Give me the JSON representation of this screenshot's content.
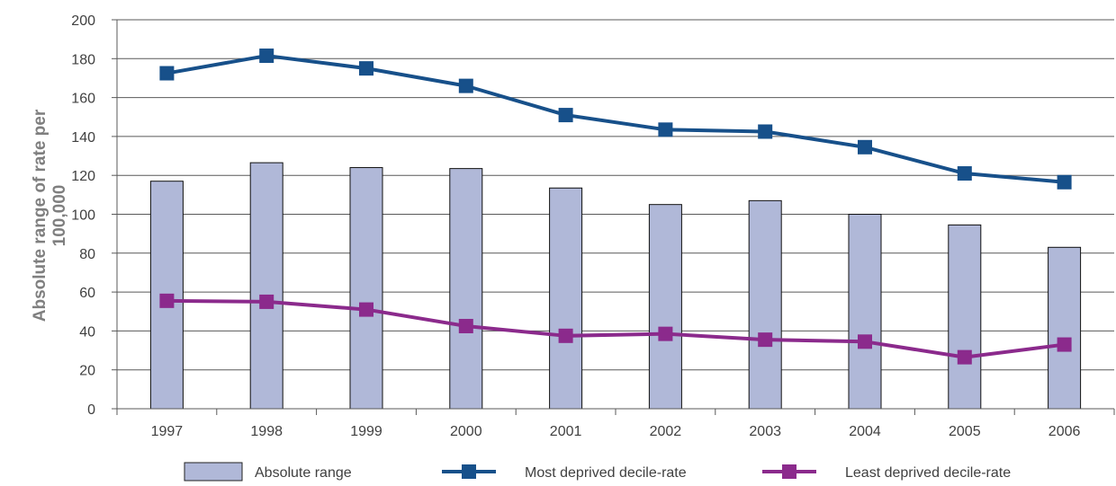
{
  "chart_data": {
    "type": "bar",
    "categories": [
      "1997",
      "1998",
      "1999",
      "2000",
      "2001",
      "2002",
      "2003",
      "2004",
      "2005",
      "2006"
    ],
    "series": [
      {
        "name": "Absolute range",
        "type": "bar",
        "values": [
          117,
          126.5,
          124,
          123.5,
          113.5,
          105,
          107,
          100,
          94.5,
          83
        ],
        "color": "#b0b8d8"
      },
      {
        "name": "Most deprived decile-rate",
        "type": "line",
        "values": [
          172.5,
          181.5,
          175,
          166,
          151,
          143.5,
          142.5,
          134.5,
          121,
          116.5
        ],
        "color": "#17508a"
      },
      {
        "name": "Least deprived decile-rate",
        "type": "line",
        "values": [
          55.5,
          55,
          51,
          42.5,
          37.5,
          38.5,
          35.5,
          34.5,
          26.5,
          33
        ],
        "color": "#8b2a8c"
      }
    ],
    "ylabel_lines": [
      "Absolute range of rate per",
      "100,000"
    ],
    "ylim": [
      0,
      200
    ],
    "yticks": [
      0,
      20,
      40,
      60,
      80,
      100,
      120,
      140,
      160,
      180,
      200
    ],
    "grid": true,
    "legend": "bottom"
  }
}
